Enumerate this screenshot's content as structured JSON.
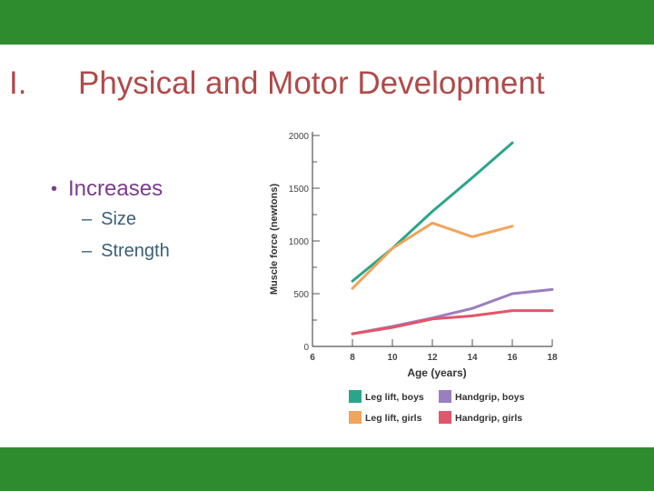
{
  "colors": {
    "band": "#2e8b2e",
    "title": "#b04a4a",
    "bullet": "#7a3d8f",
    "sub_bullet": "#3a5f78"
  },
  "slide": {
    "number": "I.",
    "title": "Physical and Motor Development",
    "bullet": {
      "icon": "bullet-dot-icon",
      "symbol": "•",
      "text": "Increases"
    },
    "sub_bullets": [
      {
        "dash": "–",
        "text": "Size"
      },
      {
        "dash": "–",
        "text": "Strength"
      }
    ]
  },
  "chart_data": {
    "type": "line",
    "xlabel": "Age (years)",
    "ylabel": "Muscle force (newtons)",
    "xlim": [
      6,
      18
    ],
    "ylim": [
      0,
      2000
    ],
    "x_ticks": [
      6,
      8,
      10,
      12,
      14,
      16,
      18
    ],
    "y_ticks": [
      0,
      500,
      1000,
      1500,
      2000
    ],
    "grid": false,
    "legend_position": "bottom",
    "series": [
      {
        "name": "Leg lift, boys",
        "color": "#2aa58a",
        "x": [
          8,
          10,
          12,
          14,
          16
        ],
        "y": [
          620,
          930,
          1280,
          1600,
          1930
        ]
      },
      {
        "name": "Leg lift, girls",
        "color": "#f0a45c",
        "x": [
          8,
          10,
          12,
          14,
          16
        ],
        "y": [
          550,
          930,
          1170,
          1040,
          1140
        ]
      },
      {
        "name": "Handgrip, boys",
        "color": "#9a7fc0",
        "x": [
          8,
          10,
          12,
          14,
          16,
          18
        ],
        "y": [
          120,
          190,
          270,
          360,
          500,
          540
        ]
      },
      {
        "name": "Handgrip, girls",
        "color": "#e0566a",
        "x": [
          8,
          10,
          12,
          14,
          16,
          18
        ],
        "y": [
          120,
          180,
          260,
          290,
          340,
          340
        ]
      }
    ]
  }
}
